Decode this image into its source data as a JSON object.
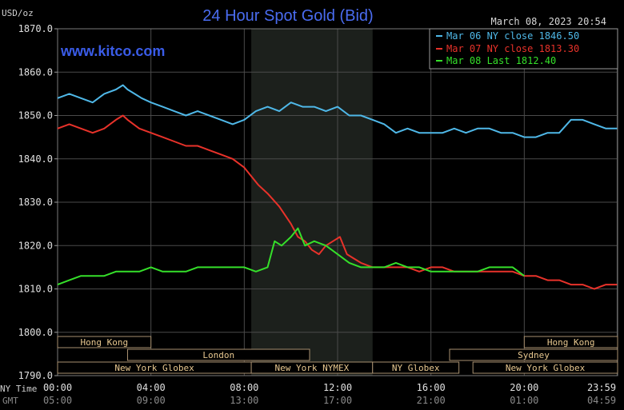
{
  "chart_data": {
    "type": "line",
    "title": "24 Hour Spot Gold (Bid)",
    "units_label": "USD/oz",
    "watermark": "www.kitco.com",
    "timestamp": "March 08, 2023 20:54",
    "ylim": [
      1790,
      1870
    ],
    "y_ticks": [
      "1870.0",
      "1860.0",
      "1850.0",
      "1840.0",
      "1830.0",
      "1820.0",
      "1810.0",
      "1800.0",
      "1790.0"
    ],
    "y_tick_values": [
      1870,
      1860,
      1850,
      1840,
      1830,
      1820,
      1810,
      1800,
      1790
    ],
    "xlim": [
      0,
      24
    ],
    "x_ticks_ny": [
      "00:00",
      "04:00",
      "08:00",
      "12:00",
      "16:00",
      "20:00",
      "23:59"
    ],
    "x_ticks_gmt": [
      "05:00",
      "09:00",
      "13:00",
      "17:00",
      "21:00",
      "01:00",
      "04:59"
    ],
    "x_tick_hours": [
      0,
      4,
      8,
      12,
      16,
      20,
      23.98
    ],
    "row_label_ny": "NY Time",
    "row_label_gmt": "GMT",
    "highlight_hours": [
      8.3,
      13.5
    ],
    "grid": true,
    "legend_position": "top-right",
    "series": [
      {
        "name": "Mar 06 NY close 1846.50",
        "color": "#4fb8e8",
        "x": [
          0,
          0.5,
          1,
          1.5,
          2,
          2.5,
          2.8,
          3,
          3.3,
          3.6,
          4,
          4.5,
          5,
          5.5,
          6,
          6.5,
          7,
          7.5,
          8,
          8.5,
          9,
          9.5,
          10,
          10.5,
          11,
          11.5,
          12,
          12.5,
          13,
          13.5,
          14,
          14.5,
          15,
          15.5,
          16,
          16.5,
          17,
          17.5,
          18,
          18.5,
          19,
          19.5,
          20,
          20.5,
          21,
          21.5,
          22,
          22.5,
          23,
          23.5,
          23.98
        ],
        "values": [
          1854,
          1855,
          1854,
          1853,
          1855,
          1856,
          1857,
          1856,
          1855,
          1854,
          1853,
          1852,
          1851,
          1850,
          1851,
          1850,
          1849,
          1848,
          1849,
          1851,
          1852,
          1851,
          1853,
          1852,
          1852,
          1851,
          1852,
          1850,
          1850,
          1849,
          1848,
          1846,
          1847,
          1846,
          1846,
          1846,
          1847,
          1846,
          1847,
          1847,
          1846,
          1846,
          1845,
          1845,
          1846,
          1846,
          1849,
          1849,
          1848,
          1847,
          1847
        ]
      },
      {
        "name": "Mar 07 NY close 1813.30",
        "color": "#e8322a",
        "x": [
          0,
          0.5,
          1,
          1.5,
          2,
          2.5,
          2.8,
          3,
          3.5,
          4,
          4.5,
          5,
          5.5,
          6,
          6.5,
          7,
          7.5,
          8,
          8.3,
          8.6,
          9,
          9.5,
          10,
          10.3,
          10.6,
          10.9,
          11.2,
          11.5,
          11.8,
          12.1,
          12.4,
          12.7,
          13,
          13.5,
          14,
          14.5,
          15,
          15.5,
          16,
          16.5,
          17,
          17.5,
          18,
          18.5,
          19,
          19.5,
          20,
          20.5,
          21,
          21.5,
          22,
          22.5,
          23,
          23.5,
          23.98
        ],
        "values": [
          1847,
          1848,
          1847,
          1846,
          1847,
          1849,
          1850,
          1849,
          1847,
          1846,
          1845,
          1844,
          1843,
          1843,
          1842,
          1841,
          1840,
          1838,
          1836,
          1834,
          1832,
          1829,
          1825,
          1822,
          1821,
          1819,
          1818,
          1820,
          1821,
          1822,
          1818,
          1817,
          1816,
          1815,
          1815,
          1815,
          1815,
          1814,
          1815,
          1815,
          1814,
          1814,
          1814,
          1814,
          1814,
          1814,
          1813,
          1813,
          1812,
          1812,
          1811,
          1811,
          1810,
          1811,
          1811
        ]
      },
      {
        "name": "Mar 08 Last 1812.40",
        "color": "#35e02a",
        "x": [
          0,
          0.5,
          1,
          1.5,
          2,
          2.5,
          3,
          3.5,
          4,
          4.5,
          5,
          5.5,
          6,
          6.5,
          7,
          7.5,
          8,
          8.5,
          9,
          9.3,
          9.6,
          10,
          10.3,
          10.6,
          11,
          11.5,
          12,
          12.5,
          13,
          13.5,
          14,
          14.5,
          15,
          15.5,
          16,
          16.5,
          17,
          17.5,
          18,
          18.5,
          19,
          19.5,
          20
        ],
        "values": [
          1811,
          1812,
          1813,
          1813,
          1813,
          1814,
          1814,
          1814,
          1815,
          1814,
          1814,
          1814,
          1815,
          1815,
          1815,
          1815,
          1815,
          1814,
          1815,
          1821,
          1820,
          1822,
          1824,
          1820,
          1821,
          1820,
          1818,
          1816,
          1815,
          1815,
          1815,
          1816,
          1815,
          1815,
          1814,
          1814,
          1814,
          1814,
          1814,
          1815,
          1815,
          1815,
          1813
        ]
      }
    ],
    "sessions": [
      {
        "label": "Hong Kong",
        "start": 0,
        "end": 4
      },
      {
        "label": "Hong Kong",
        "start": 20,
        "end": 24
      },
      {
        "label": "London",
        "start": 3,
        "end": 10.8
      },
      {
        "label": "Sydney",
        "start": 16.8,
        "end": 24
      },
      {
        "label": "New York Globex",
        "start": 0,
        "end": 8.3
      },
      {
        "label": "New York NYMEX",
        "start": 8.3,
        "end": 13.5
      },
      {
        "label": "NY Globex",
        "start": 13.5,
        "end": 17.2
      },
      {
        "label": "New York Globex",
        "start": 17.8,
        "end": 24
      }
    ]
  }
}
